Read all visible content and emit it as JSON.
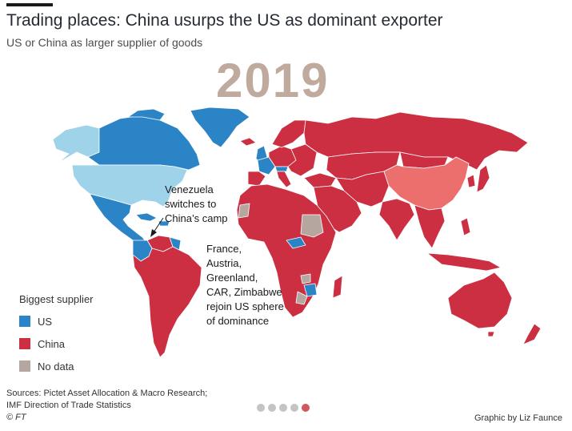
{
  "header": {
    "title": "Trading places: China usurps the US as dominant exporter",
    "subtitle": "US or China as larger supplier of goods"
  },
  "year": "2019",
  "annotations": {
    "venezuela": [
      "Venezuela",
      "switches to",
      "China’s camp"
    ],
    "rejoin": [
      "France,",
      "Austria,",
      "Greenland,",
      "CAR, Zimbabwe",
      "rejoin US sphere",
      "of dominance"
    ]
  },
  "legend": {
    "title": "Biggest supplier",
    "items": [
      {
        "label": "US",
        "color": "#2b84c6"
      },
      {
        "label": "China",
        "color": "#cc2f41"
      },
      {
        "label": "No data",
        "color": "#b5a6a0"
      }
    ]
  },
  "map_colors": {
    "us_sphere": "#2b84c6",
    "china_sphere": "#cc2f41",
    "no_data": "#b5a6a0",
    "united_states": "#9fd3e9",
    "china": "#ec6f6e"
  },
  "footer": {
    "sources": [
      "Sources: Pictet Asset Allocation & Macro Research;",
      "IMF Direction of Trade Statistics",
      "© FT"
    ],
    "credit": "Graphic by Liz Faunce"
  },
  "pagination": {
    "total": 5,
    "active": 5
  }
}
